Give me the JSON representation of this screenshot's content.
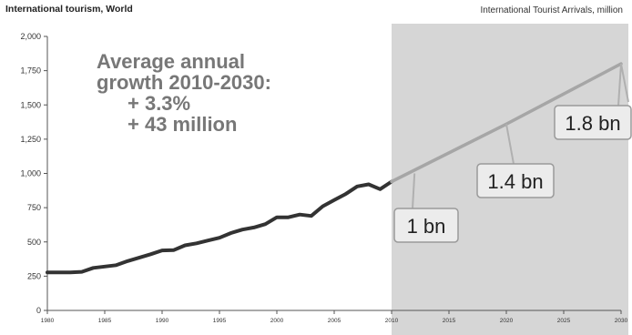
{
  "chart_data": {
    "type": "line",
    "title": "International tourism, World",
    "subtitle": "International Tourist Arrivals, million",
    "xlim": [
      1980,
      2030
    ],
    "ylim": [
      0,
      2000
    ],
    "x_ticks": [
      "1980",
      "1985",
      "1990",
      "1995",
      "2000",
      "2005",
      "2010",
      "2015",
      "2020",
      "2025",
      "2030"
    ],
    "y_ticks": [
      "0",
      "250",
      "500",
      "750",
      "1,000",
      "1,250",
      "1,500",
      "1,750",
      "2,000"
    ],
    "shaded_region": {
      "from": 2010,
      "to": 2030
    },
    "series": [
      {
        "kind": "actual",
        "color": "#333333",
        "points": [
          [
            1980,
            278
          ],
          [
            1981,
            278
          ],
          [
            1982,
            277
          ],
          [
            1983,
            282
          ],
          [
            1984,
            310
          ],
          [
            1985,
            320
          ],
          [
            1986,
            330
          ],
          [
            1987,
            360
          ],
          [
            1988,
            385
          ],
          [
            1989,
            410
          ],
          [
            1990,
            438
          ],
          [
            1991,
            440
          ],
          [
            1992,
            475
          ],
          [
            1993,
            490
          ],
          [
            1994,
            510
          ],
          [
            1995,
            530
          ],
          [
            1996,
            565
          ],
          [
            1997,
            590
          ],
          [
            1998,
            605
          ],
          [
            1999,
            630
          ],
          [
            2000,
            680
          ],
          [
            2001,
            680
          ],
          [
            2002,
            700
          ],
          [
            2003,
            690
          ],
          [
            2004,
            760
          ],
          [
            2005,
            805
          ],
          [
            2006,
            850
          ],
          [
            2007,
            905
          ],
          [
            2008,
            920
          ],
          [
            2009,
            885
          ],
          [
            2010,
            940
          ]
        ]
      },
      {
        "kind": "forecast",
        "color": "#a6a6a6",
        "points": [
          [
            2010,
            940
          ],
          [
            2020,
            1360
          ],
          [
            2030,
            1800
          ]
        ]
      }
    ],
    "annotation_lines": [
      "Average annual",
      "growth 2010-2030:",
      "+ 3.3%",
      "+ 43 million"
    ],
    "callouts": [
      {
        "label": "1 bn",
        "x": 2012,
        "y": 1000
      },
      {
        "label": "1.4 bn",
        "x": 2020,
        "y": 1360
      },
      {
        "label": "1.8 bn",
        "x": 2030,
        "y": 1800
      }
    ]
  }
}
